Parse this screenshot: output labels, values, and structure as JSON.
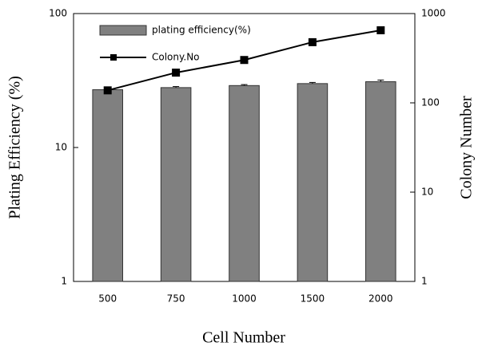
{
  "chart_data": {
    "type": "bar-line",
    "xlabel": "Cell Number",
    "ylabel": "Plating Efficiency (%)",
    "y2label": "Colony Number",
    "categories": [
      "500",
      "750",
      "1000",
      "1500",
      "2000"
    ],
    "series": [
      {
        "name": "plating efficiency(%)",
        "type": "bar",
        "color": "#808080",
        "values": [
          27,
          28,
          29,
          30,
          31
        ],
        "errors": [
          0.4,
          0.5,
          0.5,
          0.6,
          0.9
        ]
      },
      {
        "name": "Colony.No",
        "type": "line",
        "color": "#000000",
        "axis": "y2",
        "values": [
          138,
          218,
          302,
          478,
          650
        ]
      }
    ],
    "ylim": [
      1,
      100
    ],
    "yticks": [
      1,
      10,
      100
    ],
    "ylog": true,
    "y2lim": [
      1,
      1000
    ],
    "y2ticks": [
      1,
      10,
      100,
      1000
    ],
    "y2log": true
  }
}
